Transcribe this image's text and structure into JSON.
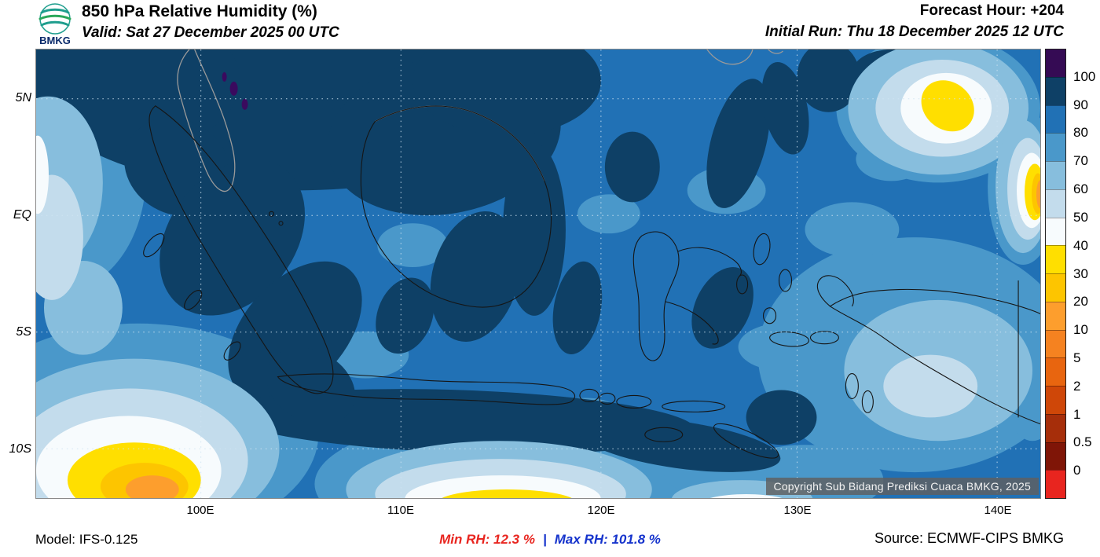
{
  "header": {
    "logo_text": "BMKG",
    "title": "850 hPa Relative Humidity (%)",
    "valid": "Valid: Sat 27 December 2025 00 UTC",
    "forecast_hour": "Forecast Hour: +204",
    "initial_run": "Initial Run: Thu 18 December 2025 12 UTC"
  },
  "map": {
    "x_ticks": [
      "100E",
      "110E",
      "120E",
      "130E",
      "140E"
    ],
    "y_ticks": [
      "5N",
      "EQ",
      "5S",
      "10S"
    ],
    "copyright": "Copyright Sub Bidang Prediksi Cuaca BMKG, 2025"
  },
  "colorbar": {
    "labels": [
      "100",
      "90",
      "80",
      "70",
      "60",
      "50",
      "40",
      "30",
      "20",
      "10",
      "5",
      "2",
      "1",
      "0.5",
      "0"
    ],
    "colors": [
      "#350b54",
      "#0e4066",
      "#2171b5",
      "#4a98ca",
      "#87bedd",
      "#c3dcec",
      "#f7fbfd",
      "#ffdf00",
      "#fdc500",
      "#fd9e2d",
      "#f58220",
      "#e8650f",
      "#cf4708",
      "#a62e0a",
      "#7f1507",
      "#e8251f"
    ]
  },
  "footer": {
    "model": "Model: IFS-0.125",
    "min_rh": "Min RH:  12.3 %",
    "separator": "|",
    "max_rh": "Max RH: 101.8 %",
    "source": "Source: ECMWF-CIPS BMKG"
  },
  "colors": {
    "min_rh_text": "#e8251f",
    "max_rh_text": "#1533cc",
    "base_fill": "#2171b5",
    "high_rh_fill": "#0e4066"
  }
}
